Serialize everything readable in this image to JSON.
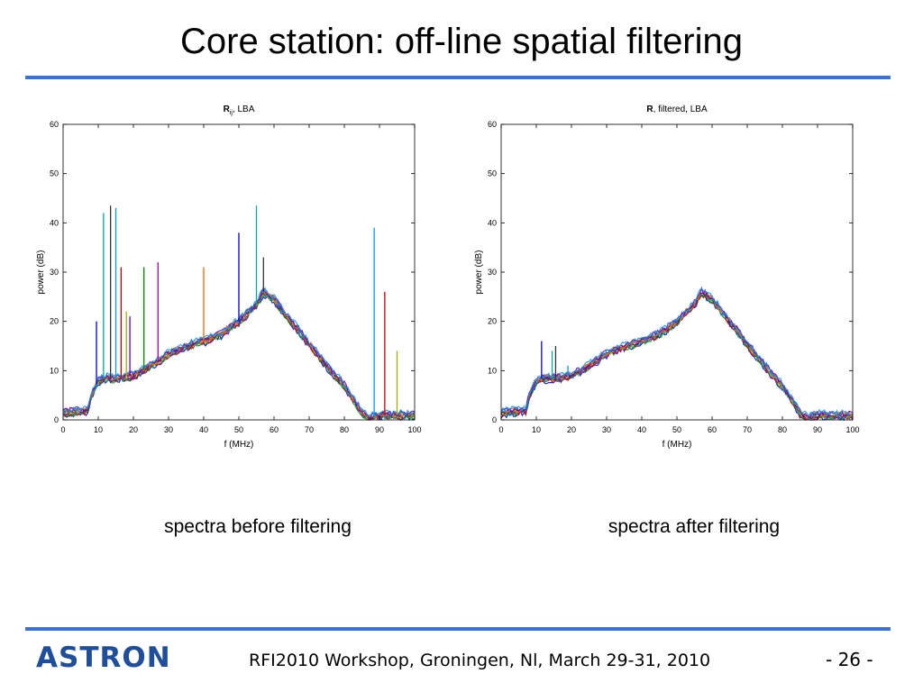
{
  "slide": {
    "title": "Core station: off-line spatial filtering",
    "captions": [
      "spectra before filtering",
      "spectra after filtering"
    ],
    "footer": "RFI2010 Workshop, Groningen, Nl, March 29-31, 2010",
    "page_number": "- 26 -",
    "logo_text": "ASTRON",
    "accent_color": "#3b73d1",
    "logo_color": "#1f4e9c"
  },
  "chart_data": [
    {
      "type": "line",
      "title": "R_ij, LBA",
      "title_parts": {
        "bold": "R",
        "sub": "ij",
        "rest": ", LBA"
      },
      "xlabel": "f (MHz)",
      "ylabel": "power (dB)",
      "xlim": [
        0,
        100
      ],
      "ylim": [
        0,
        60
      ],
      "xticks": [
        0,
        10,
        20,
        30,
        40,
        50,
        60,
        70,
        80,
        90,
        100
      ],
      "yticks": [
        0,
        10,
        20,
        30,
        40,
        50,
        60
      ],
      "grid": false,
      "series_count": "many overlaid spectra (multicolor)",
      "envelope": {
        "x": [
          0,
          7,
          8,
          10,
          12,
          15,
          20,
          25,
          30,
          35,
          40,
          45,
          50,
          55,
          57,
          60,
          65,
          70,
          75,
          80,
          85,
          87,
          90,
          95,
          100
        ],
        "y": [
          1.5,
          2,
          5,
          8,
          8.5,
          8.5,
          9,
          11,
          13.5,
          15,
          16,
          17.5,
          20,
          23.5,
          26,
          24.5,
          20,
          15.5,
          11,
          7,
          1.5,
          0.5,
          1,
          1,
          1
        ]
      },
      "spikes": [
        {
          "x": 9.5,
          "y": 20
        },
        {
          "x": 11.5,
          "y": 42
        },
        {
          "x": 13.5,
          "y": 43.5
        },
        {
          "x": 15,
          "y": 43
        },
        {
          "x": 16.5,
          "y": 31
        },
        {
          "x": 18,
          "y": 22
        },
        {
          "x": 19,
          "y": 21
        },
        {
          "x": 23,
          "y": 31
        },
        {
          "x": 27,
          "y": 32
        },
        {
          "x": 40,
          "y": 31
        },
        {
          "x": 50,
          "y": 38
        },
        {
          "x": 55,
          "y": 43.5
        },
        {
          "x": 57,
          "y": 33
        },
        {
          "x": 88.5,
          "y": 39
        },
        {
          "x": 91.5,
          "y": 26
        },
        {
          "x": 95,
          "y": 14
        }
      ]
    },
    {
      "type": "line",
      "title": "R, filtered, LBA",
      "title_parts": {
        "bold": "R",
        "sub": "",
        "rest": ", filtered, LBA"
      },
      "xlabel": "f (MHz)",
      "ylabel": "power (dB)",
      "xlim": [
        0,
        100
      ],
      "ylim": [
        0,
        60
      ],
      "xticks": [
        0,
        10,
        20,
        30,
        40,
        50,
        60,
        70,
        80,
        90,
        100
      ],
      "yticks": [
        0,
        10,
        20,
        30,
        40,
        50,
        60
      ],
      "grid": false,
      "series_count": "many overlaid spectra (multicolor)",
      "envelope": {
        "x": [
          0,
          7,
          8,
          10,
          12,
          15,
          20,
          25,
          30,
          35,
          40,
          45,
          50,
          55,
          57,
          60,
          65,
          70,
          75,
          80,
          85,
          87,
          90,
          95,
          100
        ],
        "y": [
          1.5,
          2,
          5,
          8,
          8.5,
          8.5,
          9,
          11,
          13.5,
          15,
          16,
          17.5,
          20,
          23.5,
          26,
          24.5,
          20,
          15.5,
          11,
          7,
          1.5,
          0.5,
          1,
          1,
          1
        ]
      },
      "spikes": [
        {
          "x": 11.5,
          "y": 16
        },
        {
          "x": 14.5,
          "y": 14
        },
        {
          "x": 15.5,
          "y": 15
        },
        {
          "x": 19,
          "y": 11
        },
        {
          "x": 27,
          "y": 12
        }
      ]
    }
  ]
}
